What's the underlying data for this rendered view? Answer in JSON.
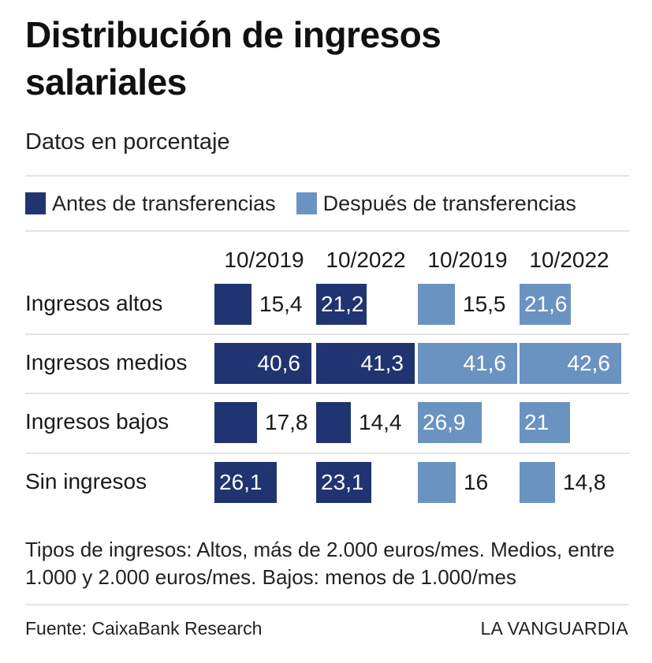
{
  "title": "Distribución de ingresos salariales",
  "subtitle": "Datos en porcentaje",
  "legend": [
    {
      "label": "Antes de transferencias",
      "color": "#1f3470"
    },
    {
      "label": "Después de transferencias",
      "color": "#6a93c2"
    }
  ],
  "chart_data": {
    "type": "bar",
    "title": "Distribución de ingresos salariales",
    "subtitle": "Datos en porcentaje",
    "categories": [
      "Ingresos altos",
      "Ingresos medios",
      "Ingresos bajos",
      "Sin ingresos"
    ],
    "columns": [
      "10/2019",
      "10/2022",
      "10/2019",
      "10/2022"
    ],
    "series": [
      {
        "name": "Antes de transferencias",
        "period": "10/2019",
        "color": "#1f3470",
        "values": [
          15.4,
          40.6,
          17.8,
          26.1
        ],
        "labels": [
          "15,4",
          "40,6",
          "17,8",
          "26,1"
        ]
      },
      {
        "name": "Antes de transferencias",
        "period": "10/2022",
        "color": "#1f3470",
        "values": [
          21.2,
          41.3,
          14.4,
          23.1
        ],
        "labels": [
          "21,2",
          "41,3",
          "14,4",
          "23,1"
        ]
      },
      {
        "name": "Después de transferencias",
        "period": "10/2019",
        "color": "#6a93c2",
        "values": [
          15.5,
          41.6,
          26.9,
          16
        ],
        "labels": [
          "15,5",
          "41,6",
          "26,9",
          "16"
        ]
      },
      {
        "name": "Después de transferencias",
        "period": "10/2022",
        "color": "#6a93c2",
        "values": [
          21.6,
          42.6,
          21,
          14.8
        ],
        "labels": [
          "21,6",
          "42,6",
          "21",
          "14,8"
        ]
      }
    ],
    "xlim": [
      0,
      42.6
    ]
  },
  "note": "Tipos de ingresos: Altos, más de 2.000 euros/mes. Medios, entre 1.000 y 2.000 euros/mes. Bajos: menos de 1.000/mes",
  "source": "Fuente: CaixaBank Research",
  "brand": "LA VANGUARDIA"
}
